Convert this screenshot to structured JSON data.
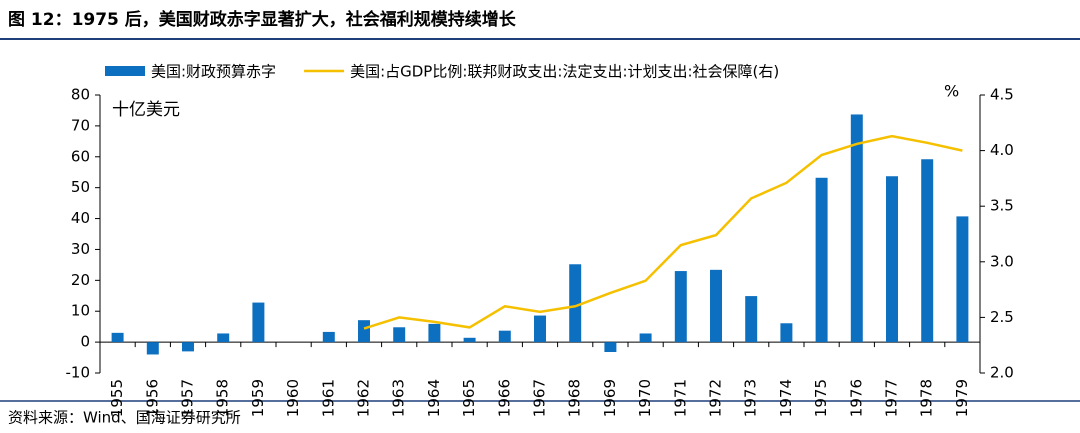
{
  "chart_data": {
    "type": "bar-line",
    "title": "图 12：1975 后，美国财政赤字显著扩大，社会福利规模持续增长",
    "source": "资料来源：Wind、国海证券研究所",
    "y_unit": "十亿美元",
    "y2_unit": "%",
    "categories": [
      "1955",
      "1956",
      "1957",
      "1958",
      "1959",
      "1960",
      "1961",
      "1962",
      "1963",
      "1964",
      "1965",
      "1966",
      "1967",
      "1968",
      "1969",
      "1970",
      "1971",
      "1972",
      "1973",
      "1974",
      "1975",
      "1976",
      "1977",
      "1978",
      "1979"
    ],
    "series": [
      {
        "name": "美国:财政预算赤字",
        "type": "bar",
        "color": "#0c6fc0",
        "values": [
          3,
          -4,
          -3,
          2.8,
          12.8,
          null,
          3.3,
          7.1,
          4.8,
          5.9,
          1.4,
          3.7,
          8.6,
          25.2,
          -3.2,
          2.8,
          23,
          23.4,
          14.9,
          6.1,
          53.2,
          73.7,
          53.7,
          59.2,
          40.7
        ]
      },
      {
        "name": "美国:占GDP比例:联邦财政支出:法定支出:计划支出:社会保障(右)",
        "type": "line",
        "axis": "y2",
        "color": "#f5c000",
        "values": [
          null,
          null,
          null,
          null,
          null,
          null,
          null,
          2.4,
          2.5,
          2.46,
          2.41,
          2.6,
          2.55,
          2.6,
          2.72,
          2.83,
          3.15,
          3.24,
          3.57,
          3.71,
          3.96,
          4.06,
          4.13,
          4.07,
          4.0
        ]
      }
    ],
    "ylim": [
      -10,
      80
    ],
    "yticks": [
      -10,
      0,
      10,
      20,
      30,
      40,
      50,
      60,
      70,
      80
    ],
    "y2lim": [
      2.0,
      4.5
    ],
    "y2ticks": [
      {
        "value": 2.0,
        "label": "2.0"
      },
      2.5,
      {
        "value": 3.0,
        "label": "3.0"
      },
      3.5,
      {
        "value": 4.0,
        "label": "4.0"
      },
      4.5
    ]
  }
}
